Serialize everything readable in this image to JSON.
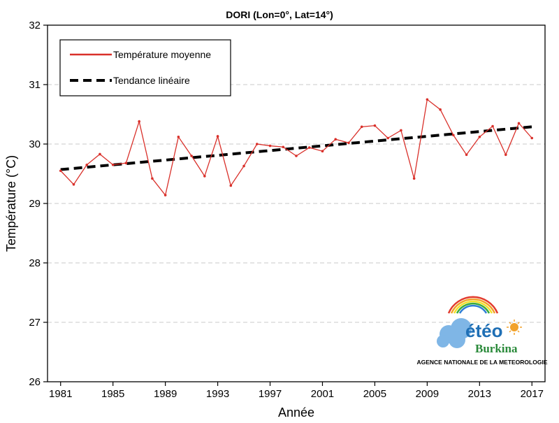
{
  "chart_data": {
    "type": "line",
    "title": "DORI (Lon=0°, Lat=14°)",
    "xlabel": "Année",
    "ylabel": "Température (°C)",
    "xlim": [
      1980,
      2018
    ],
    "ylim": [
      26,
      32
    ],
    "xticks": [
      1981,
      1985,
      1989,
      1993,
      1997,
      2001,
      2005,
      2009,
      2013,
      2017
    ],
    "yticks": [
      26,
      27,
      28,
      29,
      30,
      31,
      32
    ],
    "grid": "horizontal-dashed",
    "legend_position": "top-left",
    "x": [
      1981,
      1982,
      1983,
      1984,
      1985,
      1986,
      1987,
      1988,
      1989,
      1990,
      1991,
      1992,
      1993,
      1994,
      1995,
      1996,
      1997,
      1998,
      1999,
      2000,
      2001,
      2002,
      2003,
      2004,
      2005,
      2006,
      2007,
      2008,
      2009,
      2010,
      2011,
      2012,
      2013,
      2014,
      2015,
      2016,
      2017
    ],
    "series": [
      {
        "name": "Température moyenne",
        "color": "#d9302a",
        "style": "solid-with-markers",
        "values": [
          29.55,
          29.32,
          29.65,
          29.83,
          29.65,
          29.68,
          30.38,
          29.42,
          29.14,
          30.12,
          29.8,
          29.46,
          30.13,
          29.3,
          29.63,
          30.0,
          29.97,
          29.95,
          29.8,
          29.94,
          29.88,
          30.08,
          30.02,
          30.29,
          30.31,
          30.1,
          30.23,
          29.42,
          30.75,
          30.58,
          30.15,
          29.82,
          30.12,
          30.3,
          29.82,
          30.35,
          30.1
        ]
      },
      {
        "name": "Tendance linéaire",
        "color": "#000000",
        "style": "dashed",
        "values": [
          29.57,
          29.59,
          29.61,
          29.63,
          29.65,
          29.67,
          29.69,
          29.71,
          29.73,
          29.75,
          29.77,
          29.79,
          29.81,
          29.83,
          29.85,
          29.87,
          29.89,
          29.91,
          29.93,
          29.95,
          29.97,
          29.99,
          30.01,
          30.03,
          30.05,
          30.07,
          30.09,
          30.11,
          30.13,
          30.15,
          30.17,
          30.19,
          30.21,
          30.23,
          30.25,
          30.27,
          30.29
        ]
      }
    ]
  },
  "logo": {
    "word": "étéo",
    "sub": "Burkina",
    "agency": "AGENCE NATIONALE DE LA METEOROLOGIE",
    "colors": {
      "blue": "#1f6fb5",
      "green": "#2a8a3a",
      "sun": "#f2a22a",
      "cloud": "#7fb6e6"
    }
  }
}
